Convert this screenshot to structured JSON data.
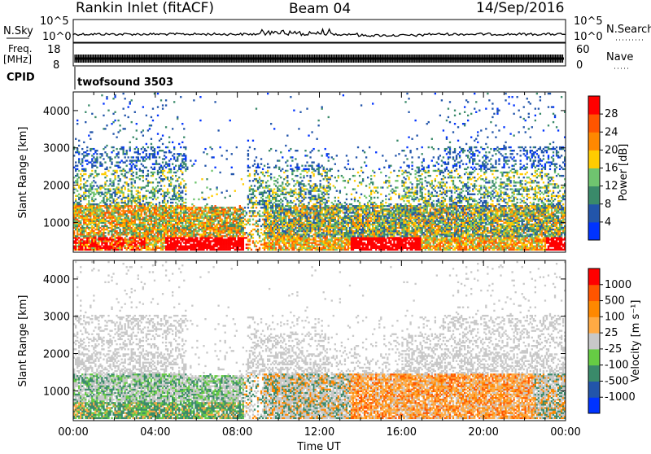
{
  "header": {
    "station": "Rankin Inlet (fitACF)",
    "beam": "Beam 04",
    "date": "14/Sep/2016"
  },
  "top_panels": {
    "nsky_label": "N.Sky",
    "nsky_tick_top": "10^5",
    "nsky_tick_bottom": "10^0",
    "nsearch_label": "N.Search",
    "nsearch_tick_top": "10^5",
    "nsearch_tick_bottom": "10^0",
    "freq_label": "Freq.",
    "freq_unit": "[MHz]",
    "freq_tick_top": "18",
    "freq_tick_bottom": "8",
    "nave_label": "Nave",
    "nave_tick_top": "60",
    "nave_tick_bottom": "0",
    "cpid_label": "CPID",
    "cpid_value": "twofsound 3503"
  },
  "colors": {
    "power": [
      "#0033ff",
      "#2255aa",
      "#3a8a6a",
      "#6fc46f",
      "#ffcc00",
      "#ff8800",
      "#ff5500",
      "#ff0000"
    ],
    "velocity": [
      "#ff0000",
      "#ff5500",
      "#ff8800",
      "#ffaa44",
      "#c8c8c8",
      "#66cc44",
      "#3a8a6a",
      "#2255aa",
      "#0033ff"
    ]
  },
  "chart_data": [
    {
      "type": "heatmap",
      "name": "power",
      "xlabel": "",
      "ylabel": "Slant Range [km]",
      "ylim": [
        200,
        4500
      ],
      "yticks": [
        "1000",
        "2000",
        "3000",
        "4000"
      ],
      "xticks": [
        "00:00",
        "04:00",
        "08:00",
        "12:00",
        "16:00",
        "20:00",
        "00:00"
      ],
      "colorbar_label": "Power [dB]",
      "colorbar_ticks": [
        "4",
        "8",
        "12",
        "16",
        "20",
        "24",
        "28"
      ],
      "colorbar_range": [
        0,
        30
      ]
    },
    {
      "type": "heatmap",
      "name": "velocity",
      "xlabel": "Time UT",
      "ylabel": "Slant Range [km]",
      "ylim": [
        200,
        4500
      ],
      "yticks": [
        "1000",
        "2000",
        "3000",
        "4000"
      ],
      "xticks": [
        "00:00",
        "04:00",
        "08:00",
        "12:00",
        "16:00",
        "20:00",
        "00:00"
      ],
      "colorbar_label": "Velocity [m s⁻¹]",
      "colorbar_ticks": [
        "1000",
        "500",
        "100",
        "25",
        "-25",
        "-100",
        "-500",
        "-1000"
      ]
    }
  ]
}
